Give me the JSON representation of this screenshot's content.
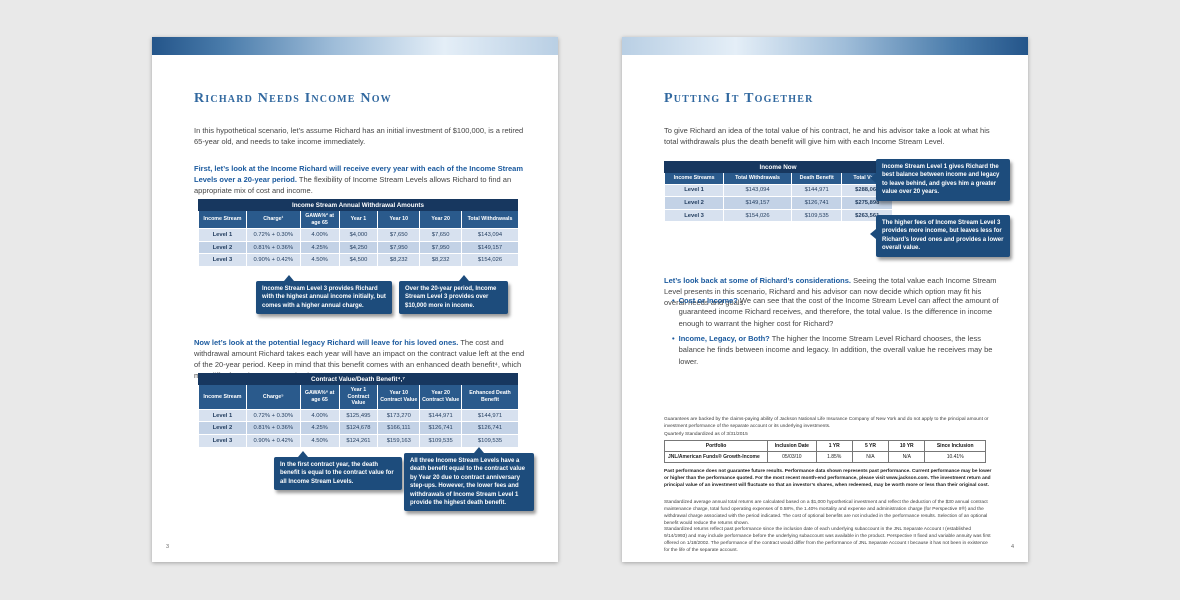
{
  "colors": {
    "page_background": "#e9e9e9",
    "navy": "#1d4c7c",
    "title_blue": "#31689f",
    "table_title_bg": "#17375f",
    "table_header_bg": "#2a5a8c"
  },
  "left_page": {
    "page_number": "3",
    "title": "Richard Needs Income Now",
    "intro": "In this hypothetical scenario, let’s assume Richard has an initial investment of $100,000, is a retired 65-year old, and needs to take income immediately.",
    "para1_lead": "First, let’s look at the Income Richard will receive every year with each of the Income Stream Levels over a 20-year period.",
    "para1_rest": " The flexibility of Income Stream Levels allows Richard to find an appropriate mix of cost and income.",
    "table1": {
      "title": "Income Stream Annual Withdrawal Amounts",
      "headers": [
        "Income Stream",
        "Charge¹",
        "GAWA%² at age 65",
        "Year 1",
        "Year 10",
        "Year 20",
        "Total Withdrawals"
      ],
      "rows": [
        [
          "Level 1",
          "0.72% + 0.30%",
          "4.00%",
          "$4,000",
          "$7,650",
          "$7,650",
          "$143,094"
        ],
        [
          "Level 2",
          "0.81% + 0.36%",
          "4.25%",
          "$4,250",
          "$7,950",
          "$7,950",
          "$149,157"
        ],
        [
          "Level 3",
          "0.90% + 0.42%",
          "4.50%",
          "$4,500",
          "$8,232",
          "$8,232",
          "$154,026"
        ]
      ]
    },
    "callout1": "Income Stream Level 3 provides Richard with the highest annual income initially, but comes with a higher annual charge.",
    "callout2": "Over the 20-year period, Income Stream Level 3 provides over $10,000 more in income.",
    "para2_lead": "Now let’s look at the potential legacy Richard will leave for his loved ones.",
    "para2_rest": " The cost and withdrawal amount Richard takes each year will have an impact on the contract value left at the end of the 20-year period. Keep in mind that this benefit comes with an enhanced death benefit⁴, which may differ from the contract value in some years.",
    "table2": {
      "title": "Contract Value/Death Benefit⁴,⁷",
      "headers": [
        "Income Stream",
        "Charge⁵",
        "GAWA%⁶ at age 65",
        "Year 1 Contract Value",
        "Year 10 Contract Value",
        "Year 20 Contract Value",
        "Enhanced Death Benefit"
      ],
      "rows": [
        [
          "Level 1",
          "0.72% + 0.30%",
          "4.00%",
          "$125,495",
          "$173,270",
          "$144,971",
          "$144,971"
        ],
        [
          "Level 2",
          "0.81% + 0.36%",
          "4.25%",
          "$124,678",
          "$166,111",
          "$126,741",
          "$126,741"
        ],
        [
          "Level 3",
          "0.90% + 0.42%",
          "4.50%",
          "$124,261",
          "$159,163",
          "$109,535",
          "$109,535"
        ]
      ]
    },
    "callout3": "In the first contract year, the death benefit is equal to the contract value for all Income Stream Levels.",
    "callout4": "All three Income Stream Levels have a death benefit equal to the contract value by Year 20 due to contract anniversary step-ups. However, the lower fees and withdrawals of Income Stream Level 1 provide the highest death benefit."
  },
  "right_page": {
    "page_number": "4",
    "title": "Putting It Together",
    "intro": "To give Richard an idea of the total value of his contract, he and his advisor take a look at what his total withdrawals plus the death benefit will give him with each Income Stream Level.",
    "table": {
      "title": "Income Now",
      "headers": [
        "Income Streams",
        "Total Withdrawals",
        "Death Benefit",
        "Total Value"
      ],
      "rows": [
        [
          "Level 1",
          "$143,094",
          "$144,971",
          "$288,065"
        ],
        [
          "Level 2",
          "$149,157",
          "$126,741",
          "$275,898"
        ],
        [
          "Level 3",
          "$154,026",
          "$109,535",
          "$263,561"
        ]
      ]
    },
    "callout1": "Income Stream Level 1 gives Richard the best balance between income and legacy to leave behind, and gives him a greater value over 20 years.",
    "callout2": "The higher fees of Income Stream Level 3 provides more income, but leaves less for Richard’s loved ones and provides a lower overall value.",
    "para_lead": "Let’s look back at some of Richard’s considerations.",
    "para_rest": " Seeing the total value each Income Stream Level presents in this scenario, Richard and his advisor can now decide which option may fit his overall needs and goals.",
    "bullet1_lead": "Cost or Income?",
    "bullet1_rest": " We can see that the cost of the Income Stream Level can affect the amount of guaranteed income Richard receives, and therefore, the total value. Is the difference in income enough to warrant the higher cost for Richard?",
    "bullet2_lead": "Income, Legacy, or Both?",
    "bullet2_rest": " The higher the Income Stream Level Richard chooses, the less balance he finds between income and legacy. In addition, the overall value he receives may be lower.",
    "disclaimer1": "Guarantees are backed by the claims-paying ability of Jackson National Life Insurance Company of New York and do not apply to the principal amount or investment performance of the separate account or its underlying investments.",
    "quarterly_label": "Quarterly Standardized as of 3/31/2015",
    "perf_table": {
      "headers": [
        "Portfolio",
        "Inclusion Date",
        "1 YR",
        "5 YR",
        "10 YR",
        "Since Inclusion"
      ],
      "rows": [
        [
          "JNL/American Funds® Growth-Income",
          "05/03/10",
          "1.85%",
          "N/A",
          "N/A",
          "10.41%"
        ]
      ]
    },
    "disclaimer2": "Past performance does not guarantee future results. Performance data shown represents past performance. Current performance may be lower or higher than the performance quoted. For the most recent month-end performance, please visit www.jackson.com. The investment return and principal value of an investment will fluctuate so that an investor’s shares, when redeemed, may be worth more or less than their original cost.",
    "disclaimer3": "Standardized average annual total returns are calculated based on a $1,000 hypothetical investment and reflect the deduction of the $30 annual contract maintenance charge, total fund operating expenses of 0.58%, the 1.40% mortality and expense and administration charge (for Perspective II®) and the withdrawal charge associated with the period indicated. The cost of optional benefits are not included in the performance results. Selection of an optional benefit would reduce the returns shown.",
    "disclaimer4": "Standardized returns reflect past performance since the inclusion date of each underlying subaccount in the JNL Separate Account I (established 9/14/1993) and may include performance before the underlying subaccount was available in the product. Perspective II fixed and variable annuity was first offered on 1/18/2002. The performance of the contract would differ from the performance of JNL Separate Account I because it has not been in existence for the life of the separate account."
  }
}
